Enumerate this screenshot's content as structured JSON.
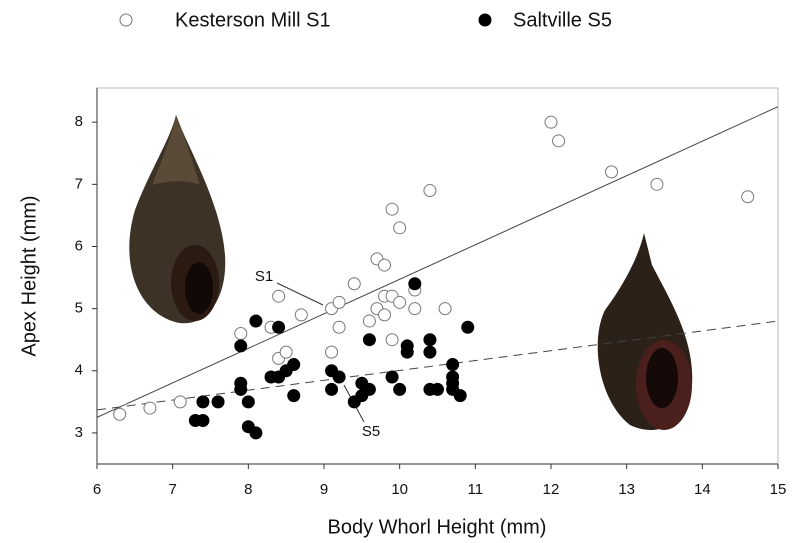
{
  "chart_data": {
    "type": "scatter",
    "x_label": "Body Whorl Height (mm)",
    "y_label": "Apex Height (mm)",
    "xlim": [
      6,
      15
    ],
    "ylim": [
      2.5,
      8.55
    ],
    "xticks": [
      6,
      7,
      8,
      9,
      10,
      11,
      12,
      13,
      14,
      15
    ],
    "yticks": [
      3,
      4,
      5,
      6,
      7,
      8
    ],
    "series": [
      {
        "name": "Kesterson Mill S1",
        "marker": "open",
        "color": "#777777",
        "x": [
          6.3,
          6.7,
          7.1,
          7.9,
          8.3,
          8.4,
          8.5,
          8.4,
          8.7,
          9.1,
          9.1,
          9.2,
          9.2,
          9.4,
          9.6,
          9.7,
          9.7,
          9.8,
          9.8,
          9.9,
          9.8,
          9.9,
          9.9,
          10.0,
          10.0,
          10.2,
          10.2,
          10.4,
          10.6,
          12.0,
          12.1,
          12.8,
          13.4,
          14.6
        ],
        "values": [
          3.3,
          3.4,
          3.5,
          4.6,
          4.7,
          4.2,
          4.3,
          5.2,
          4.9,
          4.3,
          5.0,
          5.1,
          4.7,
          5.4,
          4.8,
          5.0,
          5.8,
          5.7,
          5.2,
          5.2,
          4.9,
          6.6,
          4.5,
          6.3,
          5.1,
          5.0,
          5.3,
          6.9,
          5.0,
          8.0,
          7.7,
          7.2,
          7.0,
          6.8
        ]
      },
      {
        "name": "Saltville S5",
        "marker": "filled",
        "color": "#000000",
        "x": [
          7.3,
          7.4,
          7.4,
          7.6,
          7.9,
          7.9,
          7.9,
          8.0,
          8.0,
          8.1,
          8.1,
          8.3,
          8.4,
          8.4,
          8.5,
          8.6,
          8.6,
          9.1,
          9.1,
          9.2,
          9.4,
          9.5,
          9.5,
          9.6,
          9.6,
          9.9,
          10.0,
          10.1,
          10.1,
          10.2,
          10.4,
          10.4,
          10.4,
          10.5,
          10.7,
          10.7,
          10.7,
          10.7,
          10.8,
          10.9
        ],
        "values": [
          3.2,
          3.2,
          3.5,
          3.5,
          4.4,
          3.8,
          3.7,
          3.5,
          3.1,
          3.0,
          4.8,
          3.9,
          3.9,
          4.7,
          4.0,
          4.1,
          3.6,
          3.7,
          4.0,
          3.9,
          3.5,
          3.6,
          3.8,
          3.7,
          4.5,
          3.9,
          3.7,
          4.4,
          4.3,
          5.4,
          4.5,
          4.3,
          3.7,
          3.7,
          4.1,
          3.8,
          3.9,
          3.7,
          3.6,
          4.7
        ]
      }
    ],
    "fit_lines": [
      {
        "series": 0,
        "style": "solid",
        "x": [
          6,
          15
        ],
        "y": [
          3.25,
          8.25
        ]
      },
      {
        "series": 1,
        "style": "dashed",
        "x": [
          6,
          15
        ],
        "y": [
          3.37,
          4.8
        ]
      }
    ],
    "annotations": [
      "S1",
      "S5"
    ]
  }
}
